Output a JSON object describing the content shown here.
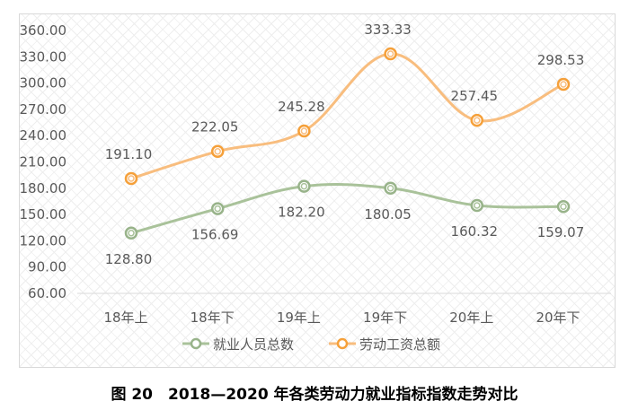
{
  "chart_data": {
    "type": "line",
    "title": "",
    "categories": [
      "18年上",
      "18年下",
      "19年上",
      "19年下",
      "20年上",
      "20年下"
    ],
    "ylim": [
      60,
      360
    ],
    "yticks": [
      "360.00",
      "330.00",
      "300.00",
      "270.00",
      "240.00",
      "210.00",
      "180.00",
      "150.00",
      "120.00",
      "90.00",
      "60.00"
    ],
    "grid": false,
    "smooth": true,
    "legend_position": "bottom",
    "series": [
      {
        "name": "就业人员总数",
        "values": [
          128.8,
          156.69,
          182.2,
          180.05,
          160.32,
          159.07
        ],
        "labels": [
          "128.80",
          "156.69",
          "182.20",
          "180.05",
          "160.32",
          "159.07"
        ],
        "color": "#a9c29a",
        "label_position": "below"
      },
      {
        "name": "劳动工资总额",
        "values": [
          191.1,
          222.05,
          245.28,
          333.33,
          257.45,
          298.53
        ],
        "labels": [
          "191.10",
          "222.05",
          "245.28",
          "333.33",
          "257.45",
          "298.53"
        ],
        "color": "#f8bd7e",
        "marker_color": "#f5a03a",
        "label_position": "above"
      }
    ]
  },
  "caption": "图 20　2018—2020 年各类劳动力就业指标指数走势对比"
}
